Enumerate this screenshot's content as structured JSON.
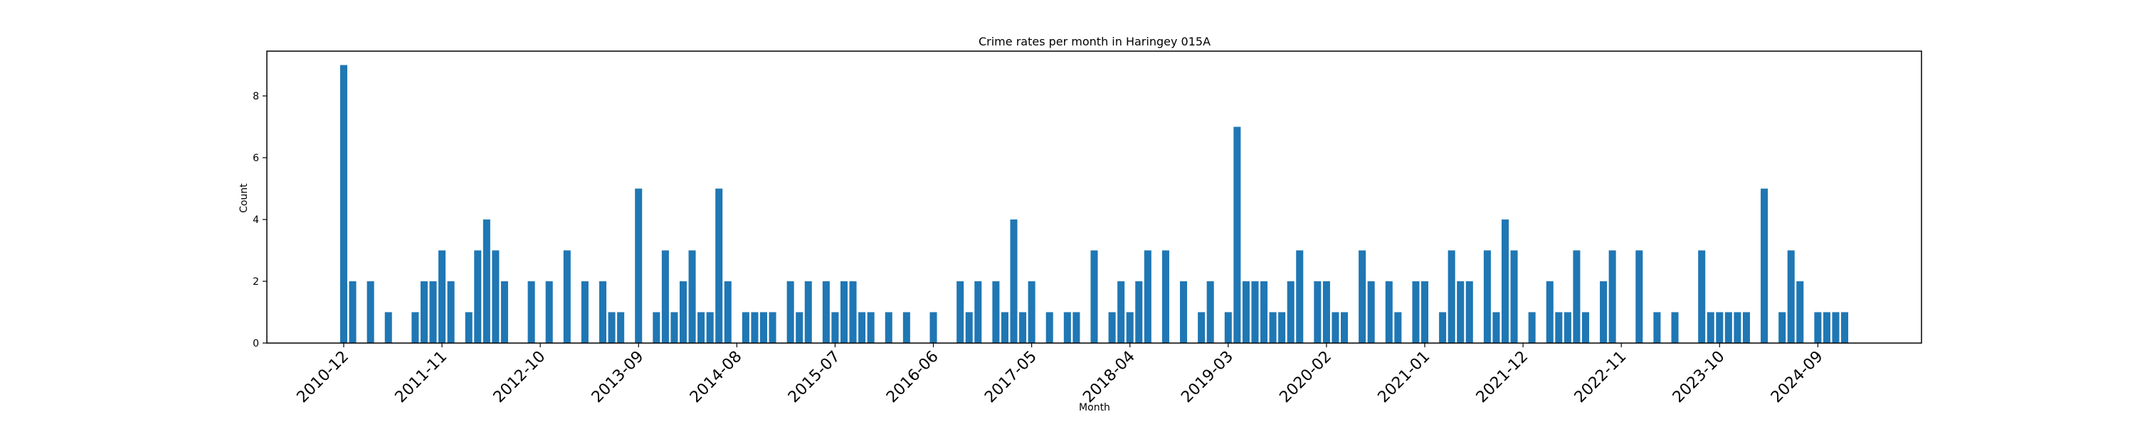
{
  "chart_data": {
    "type": "bar",
    "title": "Crime rates per month in Haringey 015A",
    "xlabel": "Month",
    "ylabel": "Count",
    "ylim": [
      0,
      9.45
    ],
    "yticks": [
      0,
      2,
      4,
      6,
      8
    ],
    "grid": false,
    "bar_color": "#1f77b4",
    "x_start": "2010-12",
    "x_end": "2024-12",
    "xticks": [
      "2010-12",
      "2011-11",
      "2012-10",
      "2013-09",
      "2014-08",
      "2015-07",
      "2016-06",
      "2017-05",
      "2018-04",
      "2019-03",
      "2020-02",
      "2021-01",
      "2021-12",
      "2022-11",
      "2023-10",
      "2024-09"
    ],
    "bars": [
      {
        "x": "2010-12",
        "y": 9
      },
      {
        "x": "2011-01",
        "y": 2
      },
      {
        "x": "2011-03",
        "y": 2
      },
      {
        "x": "2011-05",
        "y": 1
      },
      {
        "x": "2011-08",
        "y": 1
      },
      {
        "x": "2011-09",
        "y": 2
      },
      {
        "x": "2011-10",
        "y": 2
      },
      {
        "x": "2011-11",
        "y": 3
      },
      {
        "x": "2011-12",
        "y": 2
      },
      {
        "x": "2012-02",
        "y": 1
      },
      {
        "x": "2012-03",
        "y": 3
      },
      {
        "x": "2012-04",
        "y": 4
      },
      {
        "x": "2012-05",
        "y": 3
      },
      {
        "x": "2012-06",
        "y": 2
      },
      {
        "x": "2012-09",
        "y": 2
      },
      {
        "x": "2012-11",
        "y": 2
      },
      {
        "x": "2013-01",
        "y": 3
      },
      {
        "x": "2013-03",
        "y": 2
      },
      {
        "x": "2013-05",
        "y": 2
      },
      {
        "x": "2013-06",
        "y": 1
      },
      {
        "x": "2013-07",
        "y": 1
      },
      {
        "x": "2013-09",
        "y": 5
      },
      {
        "x": "2013-11",
        "y": 1
      },
      {
        "x": "2013-12",
        "y": 3
      },
      {
        "x": "2014-01",
        "y": 1
      },
      {
        "x": "2014-02",
        "y": 2
      },
      {
        "x": "2014-03",
        "y": 3
      },
      {
        "x": "2014-04",
        "y": 1
      },
      {
        "x": "2014-05",
        "y": 1
      },
      {
        "x": "2014-06",
        "y": 5
      },
      {
        "x": "2014-07",
        "y": 2
      },
      {
        "x": "2014-09",
        "y": 1
      },
      {
        "x": "2014-10",
        "y": 1
      },
      {
        "x": "2014-11",
        "y": 1
      },
      {
        "x": "2014-12",
        "y": 1
      },
      {
        "x": "2015-02",
        "y": 2
      },
      {
        "x": "2015-03",
        "y": 1
      },
      {
        "x": "2015-04",
        "y": 2
      },
      {
        "x": "2015-06",
        "y": 2
      },
      {
        "x": "2015-07",
        "y": 1
      },
      {
        "x": "2015-08",
        "y": 2
      },
      {
        "x": "2015-09",
        "y": 2
      },
      {
        "x": "2015-10",
        "y": 1
      },
      {
        "x": "2015-11",
        "y": 1
      },
      {
        "x": "2016-01",
        "y": 1
      },
      {
        "x": "2016-03",
        "y": 1
      },
      {
        "x": "2016-06",
        "y": 1
      },
      {
        "x": "2016-09",
        "y": 2
      },
      {
        "x": "2016-10",
        "y": 1
      },
      {
        "x": "2016-11",
        "y": 2
      },
      {
        "x": "2017-01",
        "y": 2
      },
      {
        "x": "2017-02",
        "y": 1
      },
      {
        "x": "2017-03",
        "y": 4
      },
      {
        "x": "2017-04",
        "y": 1
      },
      {
        "x": "2017-05",
        "y": 2
      },
      {
        "x": "2017-07",
        "y": 1
      },
      {
        "x": "2017-09",
        "y": 1
      },
      {
        "x": "2017-10",
        "y": 1
      },
      {
        "x": "2017-12",
        "y": 3
      },
      {
        "x": "2018-02",
        "y": 1
      },
      {
        "x": "2018-03",
        "y": 2
      },
      {
        "x": "2018-04",
        "y": 1
      },
      {
        "x": "2018-05",
        "y": 2
      },
      {
        "x": "2018-06",
        "y": 3
      },
      {
        "x": "2018-08",
        "y": 3
      },
      {
        "x": "2018-10",
        "y": 2
      },
      {
        "x": "2018-12",
        "y": 1
      },
      {
        "x": "2019-01",
        "y": 2
      },
      {
        "x": "2019-03",
        "y": 1
      },
      {
        "x": "2019-04",
        "y": 7
      },
      {
        "x": "2019-05",
        "y": 2
      },
      {
        "x": "2019-06",
        "y": 2
      },
      {
        "x": "2019-07",
        "y": 2
      },
      {
        "x": "2019-08",
        "y": 1
      },
      {
        "x": "2019-09",
        "y": 1
      },
      {
        "x": "2019-10",
        "y": 2
      },
      {
        "x": "2019-11",
        "y": 3
      },
      {
        "x": "2020-01",
        "y": 2
      },
      {
        "x": "2020-02",
        "y": 2
      },
      {
        "x": "2020-03",
        "y": 1
      },
      {
        "x": "2020-04",
        "y": 1
      },
      {
        "x": "2020-06",
        "y": 3
      },
      {
        "x": "2020-07",
        "y": 2
      },
      {
        "x": "2020-09",
        "y": 2
      },
      {
        "x": "2020-10",
        "y": 1
      },
      {
        "x": "2020-12",
        "y": 2
      },
      {
        "x": "2021-01",
        "y": 2
      },
      {
        "x": "2021-03",
        "y": 1
      },
      {
        "x": "2021-04",
        "y": 3
      },
      {
        "x": "2021-05",
        "y": 2
      },
      {
        "x": "2021-06",
        "y": 2
      },
      {
        "x": "2021-08",
        "y": 3
      },
      {
        "x": "2021-09",
        "y": 1
      },
      {
        "x": "2021-10",
        "y": 4
      },
      {
        "x": "2021-11",
        "y": 3
      },
      {
        "x": "2022-01",
        "y": 1
      },
      {
        "x": "2022-03",
        "y": 2
      },
      {
        "x": "2022-04",
        "y": 1
      },
      {
        "x": "2022-05",
        "y": 1
      },
      {
        "x": "2022-06",
        "y": 3
      },
      {
        "x": "2022-07",
        "y": 1
      },
      {
        "x": "2022-09",
        "y": 2
      },
      {
        "x": "2022-10",
        "y": 3
      },
      {
        "x": "2023-01",
        "y": 3
      },
      {
        "x": "2023-03",
        "y": 1
      },
      {
        "x": "2023-05",
        "y": 1
      },
      {
        "x": "2023-08",
        "y": 3
      },
      {
        "x": "2023-09",
        "y": 1
      },
      {
        "x": "2023-10",
        "y": 1
      },
      {
        "x": "2023-11",
        "y": 1
      },
      {
        "x": "2023-12",
        "y": 1
      },
      {
        "x": "2024-01",
        "y": 1
      },
      {
        "x": "2024-03",
        "y": 5
      },
      {
        "x": "2024-05",
        "y": 1
      },
      {
        "x": "2024-06",
        "y": 3
      },
      {
        "x": "2024-07",
        "y": 2
      },
      {
        "x": "2024-09",
        "y": 1
      },
      {
        "x": "2024-10",
        "y": 1
      },
      {
        "x": "2024-11",
        "y": 1
      },
      {
        "x": "2024-12",
        "y": 1
      }
    ]
  }
}
